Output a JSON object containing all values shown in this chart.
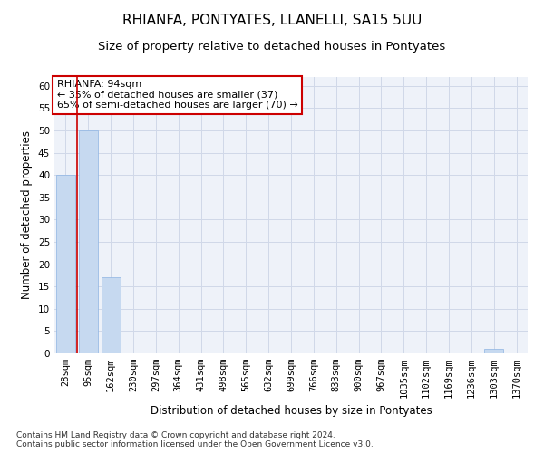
{
  "title": "RHIANFA, PONTYATES, LLANELLI, SA15 5UU",
  "subtitle": "Size of property relative to detached houses in Pontyates",
  "xlabel": "Distribution of detached houses by size in Pontyates",
  "ylabel": "Number of detached properties",
  "footer_line1": "Contains HM Land Registry data © Crown copyright and database right 2024.",
  "footer_line2": "Contains public sector information licensed under the Open Government Licence v3.0.",
  "categories": [
    "28sqm",
    "95sqm",
    "162sqm",
    "230sqm",
    "297sqm",
    "364sqm",
    "431sqm",
    "498sqm",
    "565sqm",
    "632sqm",
    "699sqm",
    "766sqm",
    "833sqm",
    "900sqm",
    "967sqm",
    "1035sqm",
    "1102sqm",
    "1169sqm",
    "1236sqm",
    "1303sqm",
    "1370sqm"
  ],
  "values": [
    40,
    50,
    17,
    0,
    0,
    0,
    0,
    0,
    0,
    0,
    0,
    0,
    0,
    0,
    0,
    0,
    0,
    0,
    0,
    1,
    0
  ],
  "bar_color": "#c6d9f0",
  "bar_edge_color": "#8db3e2",
  "grid_color": "#d0d8e8",
  "bg_color": "#eef2f9",
  "annotation_line1": "RHIANFA: 94sqm",
  "annotation_line2": "← 35% of detached houses are smaller (37)",
  "annotation_line3": "65% of semi-detached houses are larger (70) →",
  "annotation_box_color": "white",
  "annotation_box_edge_color": "#cc0000",
  "red_line_x": 0.5,
  "ylim": [
    0,
    62
  ],
  "yticks": [
    0,
    5,
    10,
    15,
    20,
    25,
    30,
    35,
    40,
    45,
    50,
    55,
    60
  ],
  "title_fontsize": 11,
  "subtitle_fontsize": 9.5,
  "axis_label_fontsize": 8.5,
  "tick_fontsize": 7.5,
  "annotation_fontsize": 8,
  "footer_fontsize": 6.5
}
